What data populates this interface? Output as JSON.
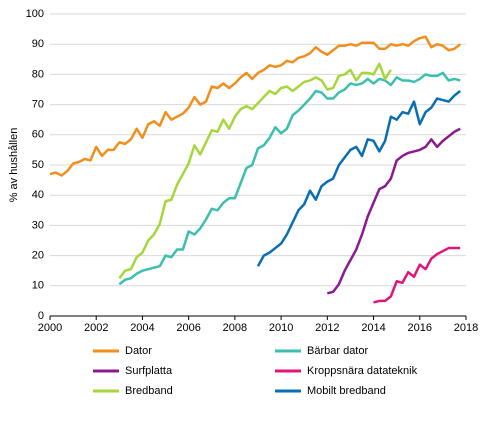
{
  "chart_data": {
    "type": "line",
    "ylabel": "% av hushållen",
    "x": [
      2000,
      2000.25,
      2000.5,
      2000.75,
      2001,
      2001.25,
      2001.5,
      2001.75,
      2002,
      2002.25,
      2002.5,
      2002.75,
      2003,
      2003.25,
      2003.5,
      2003.75,
      2004,
      2004.25,
      2004.5,
      2004.75,
      2005,
      2005.25,
      2005.5,
      2005.75,
      2006,
      2006.25,
      2006.5,
      2006.75,
      2007,
      2007.25,
      2007.5,
      2007.75,
      2008,
      2008.25,
      2008.5,
      2008.75,
      2009,
      2009.25,
      2009.5,
      2009.75,
      2010,
      2010.25,
      2010.5,
      2010.75,
      2011,
      2011.25,
      2011.5,
      2011.75,
      2012,
      2012.25,
      2012.5,
      2012.75,
      2013,
      2013.25,
      2013.5,
      2013.75,
      2014,
      2014.25,
      2014.5,
      2014.75,
      2015,
      2015.25,
      2015.5,
      2015.75,
      2016,
      2016.25,
      2016.5,
      2016.75,
      2017,
      2017.25,
      2017.5,
      2017.75
    ],
    "series": [
      {
        "name": "Dator",
        "color": "#f28e1e",
        "values": [
          47,
          47.5,
          46.5,
          48,
          50.5,
          51,
          52,
          51.5,
          56,
          53,
          55,
          55,
          57.5,
          57,
          58.5,
          62,
          59,
          63.5,
          64.5,
          63,
          67.5,
          65,
          66,
          67,
          69,
          72.5,
          70,
          71,
          76,
          75.5,
          77,
          75.5,
          77,
          79,
          80.5,
          78.5,
          80.5,
          81.5,
          83,
          82.5,
          83,
          84.5,
          84,
          85.5,
          86,
          87,
          89,
          87.5,
          86.5,
          88,
          89.5,
          89.5,
          90,
          89.5,
          90.5,
          90.5,
          90.5,
          88.5,
          88.5,
          90,
          89.5,
          90,
          89.5,
          91,
          92,
          92.5,
          89,
          90,
          89.5,
          88,
          88.5,
          90
        ]
      },
      {
        "name": "Bärbar dator",
        "color": "#3cbfae",
        "values": [
          null,
          null,
          null,
          null,
          null,
          null,
          null,
          null,
          null,
          null,
          null,
          null,
          10.5,
          12,
          12.5,
          14,
          15,
          15.5,
          16,
          16.5,
          20,
          19.5,
          22,
          22,
          28,
          27,
          29,
          32,
          35.5,
          35,
          37.5,
          39,
          39,
          44,
          49,
          50,
          55.5,
          56.5,
          59,
          62.5,
          60.5,
          62,
          66.5,
          68,
          70,
          72,
          74.5,
          74,
          72,
          72,
          74,
          75,
          77,
          76.5,
          77,
          78.5,
          77,
          78.5,
          78,
          76.5,
          79,
          78,
          78,
          77.5,
          78.5,
          80,
          79.5,
          79.5,
          80.5,
          78,
          78.5,
          78
        ]
      },
      {
        "name": "Surfplatta",
        "color": "#8b1a8e",
        "values": [
          null,
          null,
          null,
          null,
          null,
          null,
          null,
          null,
          null,
          null,
          null,
          null,
          null,
          null,
          null,
          null,
          null,
          null,
          null,
          null,
          null,
          null,
          null,
          null,
          null,
          null,
          null,
          null,
          null,
          null,
          null,
          null,
          null,
          null,
          null,
          null,
          null,
          null,
          null,
          null,
          null,
          null,
          null,
          null,
          null,
          null,
          null,
          null,
          7.5,
          8,
          10.5,
          15,
          18.5,
          22,
          27,
          33,
          37.5,
          42,
          43,
          45.5,
          51.5,
          53,
          54,
          54.5,
          55,
          56,
          58.5,
          56,
          58,
          59.5,
          61,
          62
        ]
      },
      {
        "name": "Kroppsnära datateknik",
        "color": "#e0157a",
        "values": [
          null,
          null,
          null,
          null,
          null,
          null,
          null,
          null,
          null,
          null,
          null,
          null,
          null,
          null,
          null,
          null,
          null,
          null,
          null,
          null,
          null,
          null,
          null,
          null,
          null,
          null,
          null,
          null,
          null,
          null,
          null,
          null,
          null,
          null,
          null,
          null,
          null,
          null,
          null,
          null,
          null,
          null,
          null,
          null,
          null,
          null,
          null,
          null,
          null,
          null,
          null,
          null,
          null,
          null,
          null,
          null,
          4.5,
          5,
          5,
          6.5,
          11.5,
          11,
          14.5,
          13,
          17,
          15.5,
          19,
          20.5,
          21.5,
          22.5,
          22.5,
          22.5
        ]
      },
      {
        "name": "Bredband",
        "color": "#a6d63c",
        "values": [
          null,
          null,
          null,
          null,
          null,
          null,
          null,
          null,
          null,
          null,
          null,
          null,
          12.5,
          15,
          15.5,
          19.5,
          21,
          25,
          27,
          30.5,
          38,
          38.5,
          43.5,
          47,
          50.5,
          56.5,
          53.5,
          57.5,
          61.5,
          61,
          65,
          62,
          66,
          68.5,
          69.5,
          68.5,
          70.5,
          72.5,
          74.5,
          73.5,
          75.5,
          76,
          74.5,
          76,
          77.5,
          78,
          79,
          78,
          75,
          75.5,
          79.5,
          80,
          81.5,
          78,
          80.5,
          80.5,
          80,
          83.5,
          78.5,
          81.5,
          null,
          null,
          null,
          null,
          null,
          null,
          null,
          null,
          null,
          null,
          null,
          null
        ]
      },
      {
        "name": "Mobilt bredband",
        "color": "#0a6eb4",
        "values": [
          null,
          null,
          null,
          null,
          null,
          null,
          null,
          null,
          null,
          null,
          null,
          null,
          null,
          null,
          null,
          null,
          null,
          null,
          null,
          null,
          null,
          null,
          null,
          null,
          null,
          null,
          null,
          null,
          null,
          null,
          null,
          null,
          null,
          null,
          null,
          null,
          16.5,
          20,
          21,
          22.5,
          24,
          27,
          31,
          35,
          37,
          41.5,
          38.5,
          43,
          44.5,
          45.5,
          50,
          52.5,
          55,
          56,
          53,
          58.5,
          58,
          54.5,
          58,
          66,
          65,
          67.5,
          67,
          71,
          63.5,
          67.5,
          69,
          72,
          71.5,
          71,
          73,
          74.5
        ]
      }
    ],
    "xlim": [
      2000,
      2018
    ],
    "xticks": [
      2000,
      2002,
      2004,
      2006,
      2008,
      2010,
      2012,
      2014,
      2016,
      2018
    ],
    "ylim": [
      0,
      100
    ],
    "yticks": [
      0,
      10,
      20,
      30,
      40,
      50,
      60,
      70,
      80,
      90,
      100
    ],
    "grid": true,
    "legend": "bottom"
  }
}
